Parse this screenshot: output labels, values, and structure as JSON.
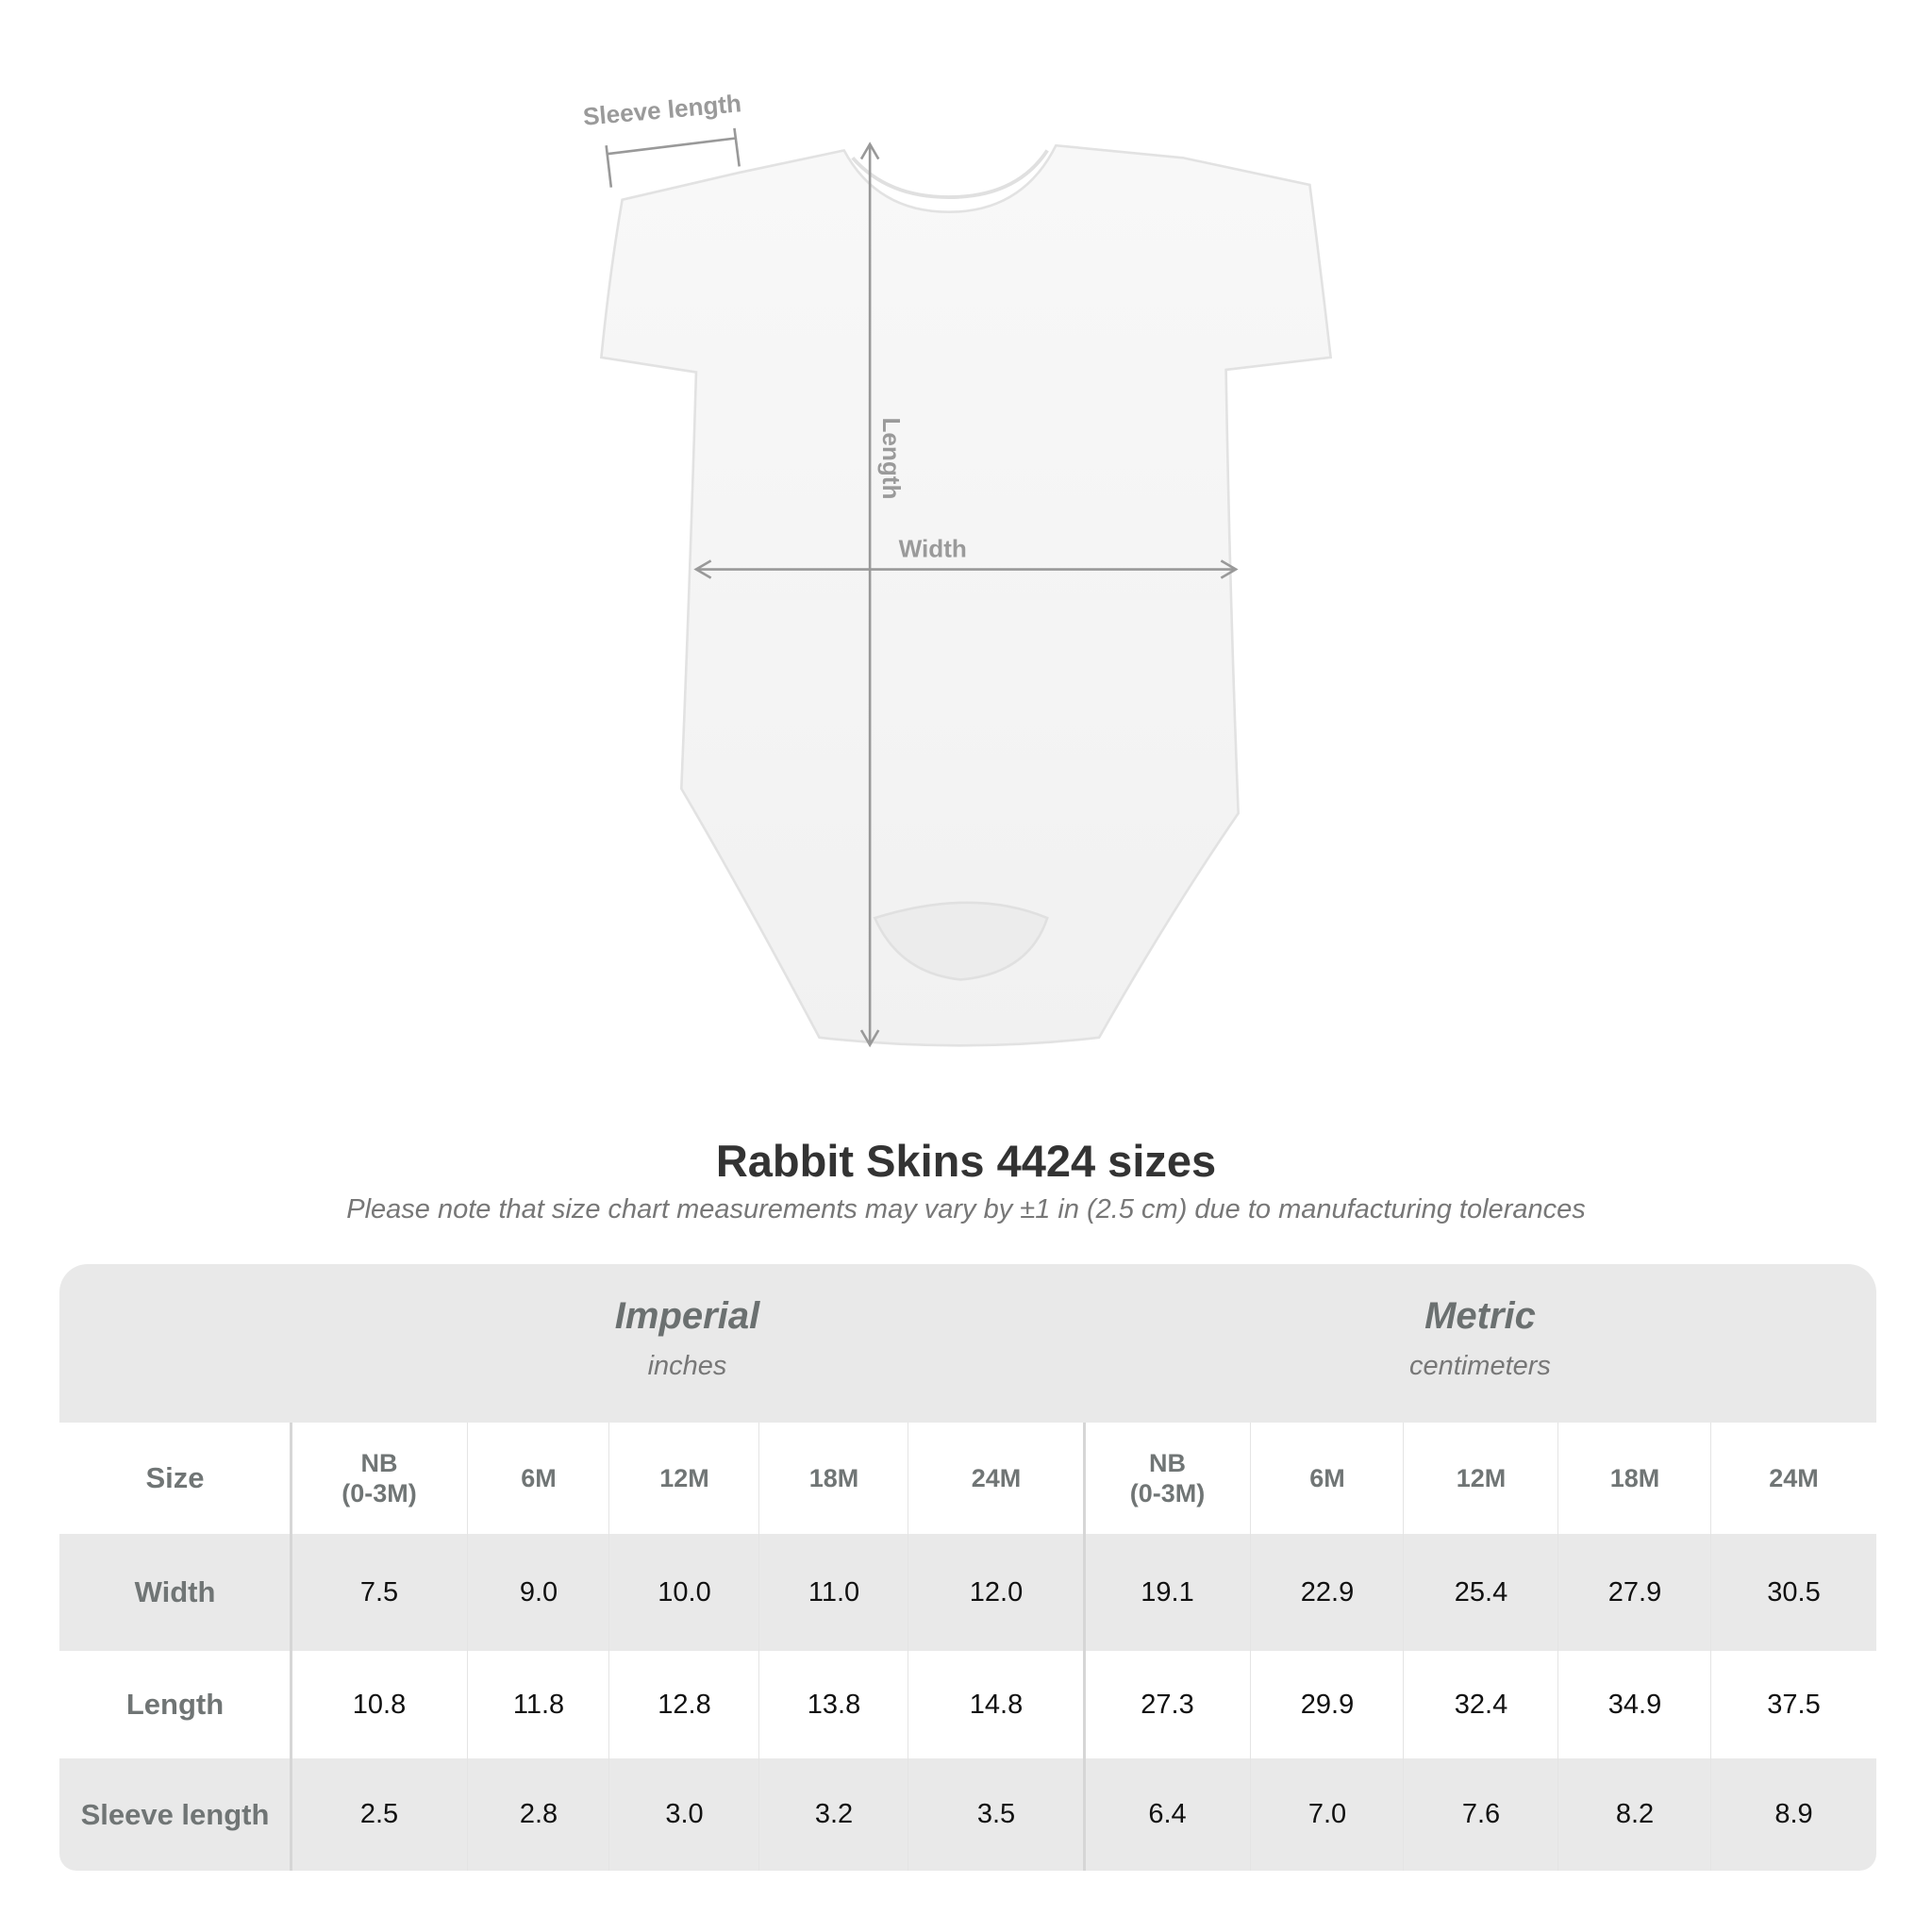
{
  "diagram": {
    "labels": {
      "sleeve_length": "Sleeve length",
      "length": "Length",
      "width": "Width"
    }
  },
  "header": {
    "title": "Rabbit Skins 4424 sizes",
    "note": "Please note that size chart measurements may vary by ±1 in (2.5 cm) due to manufacturing tolerances"
  },
  "table": {
    "groups": [
      {
        "name": "Imperial",
        "unit": "inches"
      },
      {
        "name": "Metric",
        "unit": "centimeters"
      }
    ],
    "header": [
      "Size",
      "NB\n(0-3M)",
      "6M",
      "12M",
      "18M",
      "24M",
      "NB\n(0-3M)",
      "6M",
      "12M",
      "18M",
      "24M"
    ],
    "rows": [
      [
        "Width",
        "7.5",
        "9.0",
        "10.0",
        "11.0",
        "12.0",
        "19.1",
        "22.9",
        "25.4",
        "27.9",
        "30.5"
      ],
      [
        "Length",
        "10.8",
        "11.8",
        "12.8",
        "13.8",
        "14.8",
        "27.3",
        "29.9",
        "32.4",
        "34.9",
        "37.5"
      ],
      [
        "Sleeve length",
        "2.5",
        "2.8",
        "3.0",
        "3.2",
        "3.5",
        "6.4",
        "7.0",
        "7.6",
        "8.2",
        "8.9"
      ]
    ]
  }
}
